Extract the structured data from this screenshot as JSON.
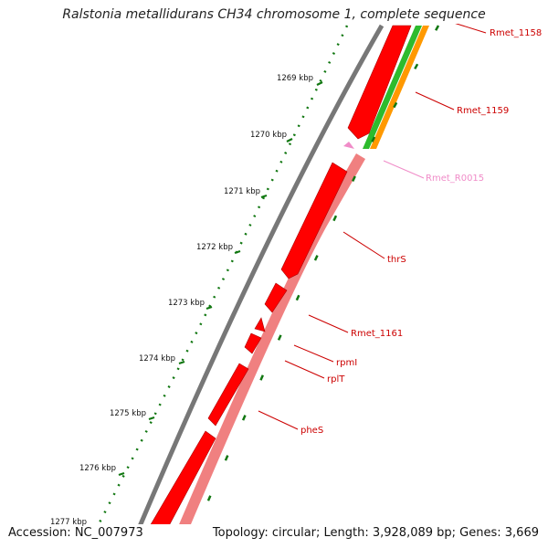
{
  "title": "Ralstonia metallidurans CH34 chromosome 1, complete sequence",
  "footer": {
    "accession": "Accession: NC_007973",
    "stats": "Topology: circular; Length: 3,928,089 bp; Genes: 3,669"
  },
  "scale": {
    "ticks": [
      "1269 kbp",
      "1270 kbp",
      "1271 kbp",
      "1272 kbp",
      "1273 kbp",
      "1274 kbp",
      "1275 kbp",
      "1276 kbp",
      "1277 kbp"
    ]
  },
  "genes": [
    {
      "name": "Rmet_1158",
      "color": "#cc0000"
    },
    {
      "name": "Rmet_1159",
      "color": "#cc0000"
    },
    {
      "name": "Rmet_R0015",
      "color": "#f08cc8"
    },
    {
      "name": "thrS",
      "color": "#cc0000"
    },
    {
      "name": "Rmet_1161",
      "color": "#cc0000"
    },
    {
      "name": "rpmI",
      "color": "#cc0000"
    },
    {
      "name": "rplT",
      "color": "#cc0000"
    },
    {
      "name": "pheS",
      "color": "#cc0000"
    }
  ],
  "colors": {
    "cds_forward": "#ff0000",
    "cds_reverse": "#f08080",
    "gc_skew": "#2dbb2d",
    "gc_content": "#ff9900",
    "backbone": "#777777",
    "tick": "#117711"
  }
}
